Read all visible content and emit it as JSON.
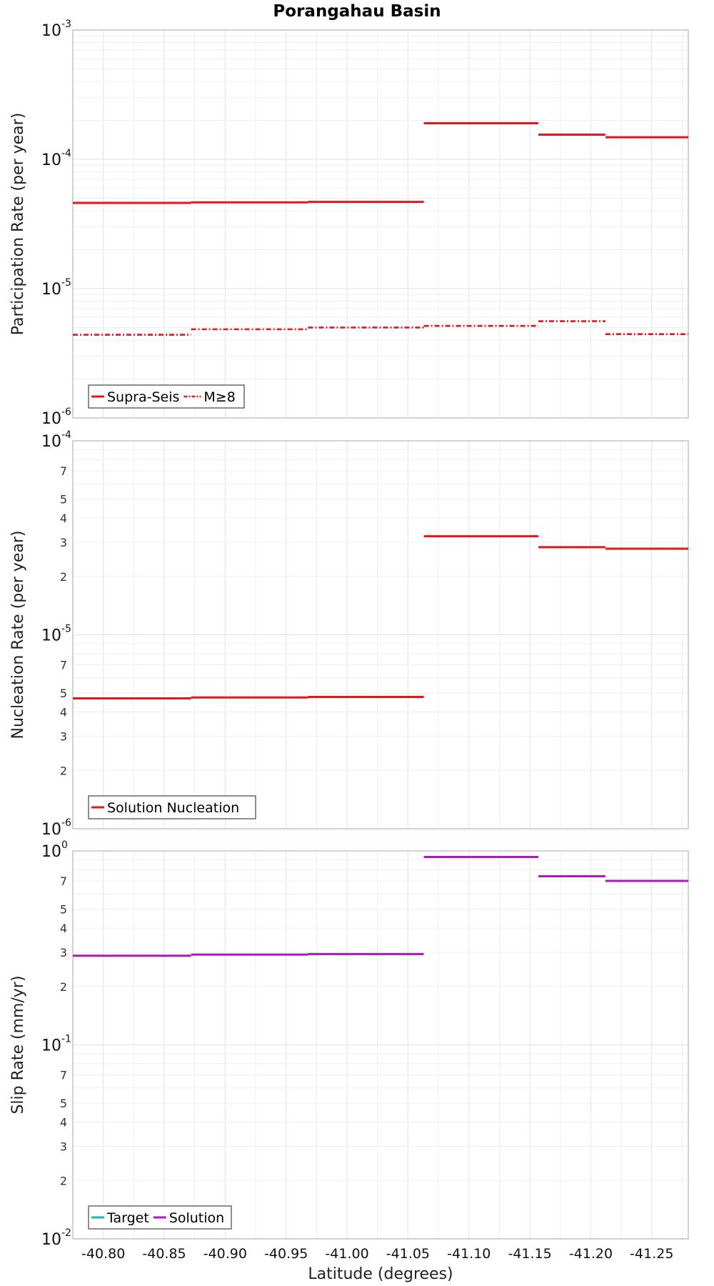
{
  "chart_data": [
    {
      "type": "line",
      "title": "Porangahau Basin",
      "ylabel": "Participation Rate (per year)",
      "yscale": "log",
      "ylim": [
        1e-06,
        0.001
      ],
      "yticks_major": [
        {
          "base": "10",
          "exp": "-6"
        },
        {
          "base": "10",
          "exp": "-5"
        },
        {
          "base": "10",
          "exp": "-4"
        },
        {
          "base": "10",
          "exp": "-3"
        }
      ],
      "yticks_minor": [],
      "xlim": [
        -40.775,
        -41.28
      ],
      "grid": true,
      "legend_position": "bottom-left",
      "series": [
        {
          "name": "Supra-Seis",
          "color": "#e8141b",
          "style": "solid",
          "segments": [
            [
              -40.775,
              -40.872,
              4.6e-05
            ],
            [
              -40.872,
              -40.968,
              4.65e-05
            ],
            [
              -40.968,
              -41.063,
              4.68e-05
            ],
            [
              -41.063,
              -41.157,
              0.00019
            ],
            [
              -41.157,
              -41.212,
              0.000155
            ],
            [
              -41.212,
              -41.28,
              0.000148
            ]
          ]
        },
        {
          "name": "M≥8",
          "color": "#e8141b",
          "style": "dashdot",
          "segments": [
            [
              -40.775,
              -40.872,
              4.4e-06
            ],
            [
              -40.872,
              -40.968,
              4.85e-06
            ],
            [
              -40.968,
              -41.063,
              5e-06
            ],
            [
              -41.063,
              -41.157,
              5.15e-06
            ],
            [
              -41.157,
              -41.212,
              5.6e-06
            ],
            [
              -41.212,
              -41.28,
              4.45e-06
            ]
          ]
        }
      ]
    },
    {
      "type": "line",
      "ylabel": "Nucleation Rate (per year)",
      "yscale": "log",
      "ylim": [
        1e-06,
        0.0001
      ],
      "yticks_major": [
        {
          "base": "10",
          "exp": "-6"
        },
        {
          "base": "10",
          "exp": "-5"
        },
        {
          "base": "10",
          "exp": "-4"
        }
      ],
      "yticks_minor": [
        "2",
        "3",
        "4",
        "5",
        "7"
      ],
      "xlim": [
        -40.775,
        -41.28
      ],
      "grid": true,
      "legend_position": "bottom-left",
      "series": [
        {
          "name": "Solution Nucleation",
          "color": "#e8141b",
          "style": "solid",
          "segments": [
            [
              -40.775,
              -40.872,
              4.7e-06
            ],
            [
              -40.872,
              -40.968,
              4.75e-06
            ],
            [
              -40.968,
              -41.063,
              4.78e-06
            ],
            [
              -41.063,
              -41.157,
              3.22e-05
            ],
            [
              -41.157,
              -41.212,
              2.83e-05
            ],
            [
              -41.212,
              -41.28,
              2.78e-05
            ]
          ]
        }
      ]
    },
    {
      "type": "line",
      "ylabel": "Slip Rate (mm/yr)",
      "xlabel": "Latitude (degrees)",
      "yscale": "log",
      "ylim": [
        0.01,
        1
      ],
      "yticks_major": [
        {
          "base": "10",
          "exp": "-2"
        },
        {
          "base": "10",
          "exp": "-1"
        },
        {
          "base": "10",
          "exp": "0"
        }
      ],
      "yticks_minor": [
        "2",
        "3",
        "4",
        "5",
        "7"
      ],
      "xlim": [
        -40.775,
        -41.28
      ],
      "xticks": [
        "-40.80",
        "-40.85",
        "-40.90",
        "-40.95",
        "-41.00",
        "-41.05",
        "-41.10",
        "-41.15",
        "-41.20",
        "-41.25"
      ],
      "grid": true,
      "legend_position": "bottom-left",
      "series": [
        {
          "name": "Target",
          "color": "#1fb5b0",
          "style": "solid",
          "segments": []
        },
        {
          "name": "Solution",
          "color": "#a81bb8",
          "style": "solid",
          "segments": [
            [
              -40.775,
              -40.872,
              0.288
            ],
            [
              -40.872,
              -40.968,
              0.292
            ],
            [
              -40.968,
              -41.063,
              0.294
            ],
            [
              -41.063,
              -41.157,
              0.93
            ],
            [
              -41.157,
              -41.212,
              0.74
            ],
            [
              -41.212,
              -41.28,
              0.7
            ]
          ]
        }
      ]
    }
  ]
}
